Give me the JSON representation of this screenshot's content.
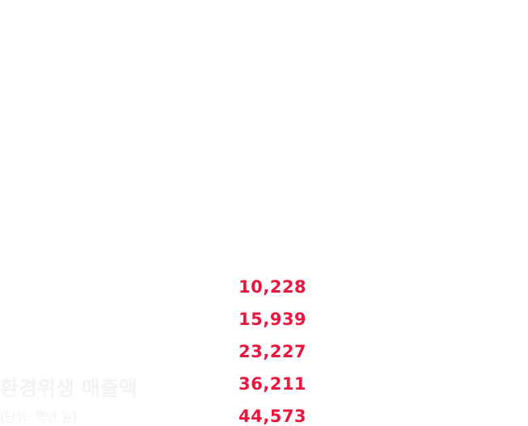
{
  "chart_data": {
    "type": "table",
    "title": "환경위생 매출액",
    "subtitle": "(단위: 백만 원)",
    "values": [
      10228,
      15939,
      23227,
      36211,
      44573
    ],
    "value_labels": [
      "10,228",
      "15,939",
      "23,227",
      "36,211",
      "44,573"
    ]
  },
  "colors": {
    "value": "#e8173f",
    "title": "#f3f3f3",
    "subtitle": "#f0f0f0",
    "background": "#ffffff"
  }
}
